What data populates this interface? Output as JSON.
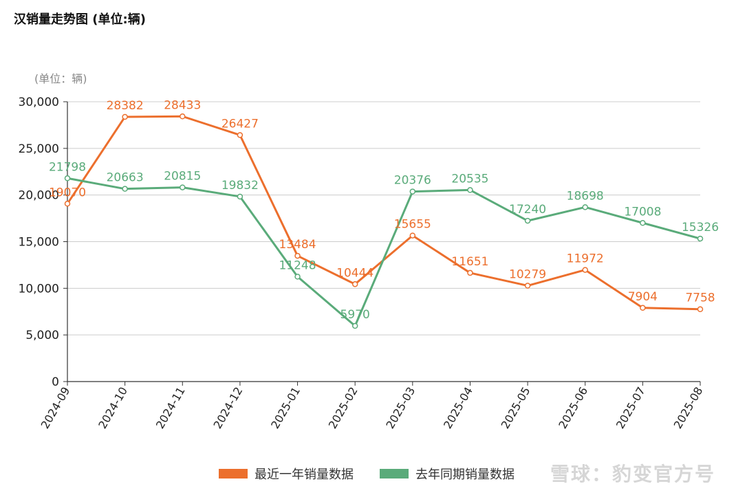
{
  "title": "汉销量走势图 (单位:辆)",
  "watermark": "雪球：豹变官方号",
  "chart_data": {
    "type": "line",
    "unit_label": "(单位：辆)",
    "categories": [
      "2024-09",
      "2024-10",
      "2024-11",
      "2024-12",
      "2025-01",
      "2025-02",
      "2025-03",
      "2025-04",
      "2025-05",
      "2025-06",
      "2025-07",
      "2025-08"
    ],
    "ylim": [
      0,
      30000
    ],
    "yticks": [
      0,
      5000,
      10000,
      15000,
      20000,
      25000,
      30000
    ],
    "ytick_labels": [
      "0",
      "5,000",
      "10,000",
      "15,000",
      "20,000",
      "25,000",
      "30,000"
    ],
    "grid": true,
    "legend_position": "bottom",
    "series": [
      {
        "name": "最近一年销量数据",
        "color": "#ec6f2d",
        "values": [
          19070,
          28382,
          28433,
          26427,
          13484,
          10444,
          15655,
          11651,
          10279,
          11972,
          7904,
          7758
        ]
      },
      {
        "name": "去年同期销量数据",
        "color": "#5aab7a",
        "values": [
          21798,
          20663,
          20815,
          19832,
          11248,
          5970,
          20376,
          20535,
          17240,
          18698,
          17008,
          15326
        ]
      }
    ]
  }
}
